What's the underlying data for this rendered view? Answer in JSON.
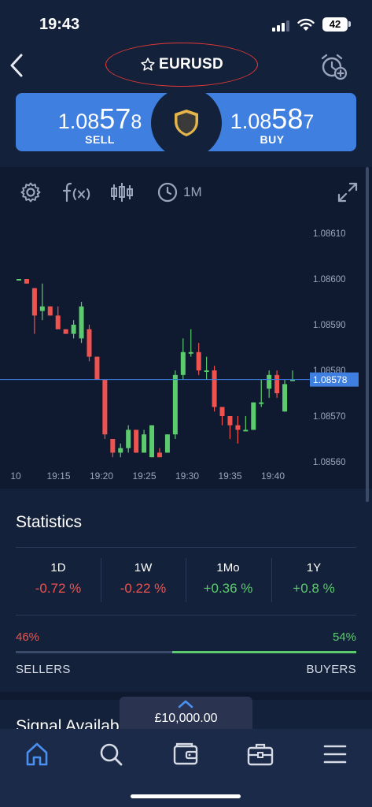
{
  "status_bar": {
    "time": "19:43",
    "battery": "42"
  },
  "header": {
    "title": "EURUSD"
  },
  "prices": {
    "sell": {
      "base": "1.08",
      "big": "57",
      "pip": "8",
      "label": "SELL"
    },
    "buy": {
      "base": "1.08",
      "big": "58",
      "pip": "7",
      "label": "BUY"
    }
  },
  "toolbar": {
    "timeframe": "1M"
  },
  "chart_data": {
    "type": "candlestick",
    "y_ticks": [
      "1.08610",
      "1.08600",
      "1.08590",
      "1.08580",
      "1.08570",
      "1.08560"
    ],
    "ylim": [
      1.0856,
      1.0861
    ],
    "x_ticks": [
      "10",
      "19:15",
      "19:20",
      "19:25",
      "19:30",
      "19:35",
      "19:40"
    ],
    "current_price_label": "1.08578",
    "current_price": 1.08578,
    "candles": [
      {
        "o": 1.086,
        "h": 1.086,
        "l": 1.086,
        "c": 1.086
      },
      {
        "o": 1.086,
        "h": 1.086,
        "l": 1.08599,
        "c": 1.08599
      },
      {
        "o": 1.08598,
        "h": 1.08598,
        "l": 1.08588,
        "c": 1.08592
      },
      {
        "o": 1.08593,
        "h": 1.08599,
        "l": 1.08591,
        "c": 1.08594
      },
      {
        "o": 1.08594,
        "h": 1.08594,
        "l": 1.08592,
        "c": 1.08592
      },
      {
        "o": 1.08592,
        "h": 1.08594,
        "l": 1.08589,
        "c": 1.08589
      },
      {
        "o": 1.08589,
        "h": 1.08589,
        "l": 1.08588,
        "c": 1.08588
      },
      {
        "o": 1.08588,
        "h": 1.08591,
        "l": 1.08587,
        "c": 1.0859
      },
      {
        "o": 1.08587,
        "h": 1.08595,
        "l": 1.08586,
        "c": 1.08594
      },
      {
        "o": 1.08589,
        "h": 1.0859,
        "l": 1.08582,
        "c": 1.08583
      },
      {
        "o": 1.08583,
        "h": 1.08583,
        "l": 1.08578,
        "c": 1.08578
      },
      {
        "o": 1.08578,
        "h": 1.08578,
        "l": 1.08565,
        "c": 1.08566
      },
      {
        "o": 1.08565,
        "h": 1.08565,
        "l": 1.08561,
        "c": 1.08562
      },
      {
        "o": 1.08562,
        "h": 1.08564,
        "l": 1.08561,
        "c": 1.08563
      },
      {
        "o": 1.08563,
        "h": 1.08568,
        "l": 1.08562,
        "c": 1.08567
      },
      {
        "o": 1.08567,
        "h": 1.08567,
        "l": 1.08562,
        "c": 1.08562
      },
      {
        "o": 1.08562,
        "h": 1.08567,
        "l": 1.08562,
        "c": 1.08566
      },
      {
        "o": 1.08561,
        "h": 1.08568,
        "l": 1.08561,
        "c": 1.08568
      },
      {
        "o": 1.08562,
        "h": 1.08563,
        "l": 1.08561,
        "c": 1.08561
      },
      {
        "o": 1.08562,
        "h": 1.08566,
        "l": 1.08562,
        "c": 1.08566
      },
      {
        "o": 1.08566,
        "h": 1.0858,
        "l": 1.08565,
        "c": 1.08579
      },
      {
        "o": 1.08579,
        "h": 1.08587,
        "l": 1.08578,
        "c": 1.08584
      },
      {
        "o": 1.08584,
        "h": 1.08589,
        "l": 1.08583,
        "c": 1.08584
      },
      {
        "o": 1.08584,
        "h": 1.08586,
        "l": 1.08579,
        "c": 1.0858
      },
      {
        "o": 1.0858,
        "h": 1.08583,
        "l": 1.08578,
        "c": 1.0858
      },
      {
        "o": 1.0858,
        "h": 1.08581,
        "l": 1.08571,
        "c": 1.08572
      },
      {
        "o": 1.08572,
        "h": 1.08572,
        "l": 1.08568,
        "c": 1.0857
      },
      {
        "o": 1.0857,
        "h": 1.0857,
        "l": 1.08565,
        "c": 1.08568
      },
      {
        "o": 1.08568,
        "h": 1.0857,
        "l": 1.08564,
        "c": 1.08567
      },
      {
        "o": 1.08567,
        "h": 1.0857,
        "l": 1.08567,
        "c": 1.08567
      },
      {
        "o": 1.08567,
        "h": 1.08573,
        "l": 1.08567,
        "c": 1.08573
      },
      {
        "o": 1.08573,
        "h": 1.08578,
        "l": 1.08572,
        "c": 1.08573
      },
      {
        "o": 1.08576,
        "h": 1.0858,
        "l": 1.08574,
        "c": 1.08579
      },
      {
        "o": 1.08579,
        "h": 1.0858,
        "l": 1.08574,
        "c": 1.08575
      },
      {
        "o": 1.08571,
        "h": 1.08578,
        "l": 1.08571,
        "c": 1.08577
      },
      {
        "o": 1.08578,
        "h": 1.0858,
        "l": 1.08578,
        "c": 1.08578
      }
    ]
  },
  "statistics": {
    "title": "Statistics",
    "periods": [
      {
        "label": "1D",
        "value": "-0.72 %",
        "trend": "neg"
      },
      {
        "label": "1W",
        "value": "-0.22 %",
        "trend": "neg"
      },
      {
        "label": "1Mo",
        "value": "+0.36 %",
        "trend": "pos"
      },
      {
        "label": "1Y",
        "value": "+0.8 %",
        "trend": "pos"
      }
    ],
    "sellers_pct": "46%",
    "buyers_pct": "54%",
    "sellers_fraction": 0.46,
    "buyers_fraction": 0.54,
    "sellers_label": "SELLERS",
    "buyers_label": "BUYERS"
  },
  "signal_section": {
    "title": "Signal Availab"
  },
  "balance": {
    "amount": "£10,000.00"
  },
  "colors": {
    "accent": "#3f7fe0",
    "bullish": "#5ccb6e",
    "bearish": "#ef5350",
    "background": "#14213a"
  }
}
